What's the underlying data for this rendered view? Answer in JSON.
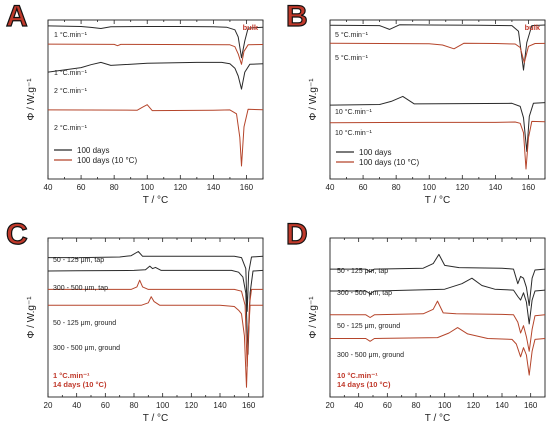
{
  "colors": {
    "black": "#2a2a2a",
    "red": "#b5452b",
    "accent": "#c0392b"
  },
  "chart_data": [
    {
      "panel": "A",
      "type": "line",
      "xlabel": "T  /  °C",
      "ylabel": "Φ  /  W.g⁻¹",
      "xlim": [
        40,
        170
      ],
      "xticks": [
        40,
        60,
        80,
        100,
        120,
        140,
        160
      ],
      "corner_label": "bulk",
      "curve_labels": [
        "1 °C.min⁻¹",
        "1 °C.min⁻¹",
        "2 °C.min⁻¹",
        "2 °C.min⁻¹"
      ],
      "legend": [
        {
          "name": "100 days",
          "color": "#2a2a2a"
        },
        {
          "name": "100 days (10 °C)",
          "color": "#b5452b"
        }
      ],
      "series": [
        {
          "color": "#2a2a2a",
          "points": [
            [
              40,
              27.5
            ],
            [
              60,
              27.0
            ],
            [
              66,
              26.3
            ],
            [
              72,
              25.5
            ],
            [
              78,
              26.8
            ],
            [
              100,
              27.0
            ],
            [
              120,
              27.0
            ],
            [
              140,
              26.8
            ],
            [
              148,
              26.5
            ],
            [
              153,
              24.5
            ],
            [
              155,
              19.0
            ],
            [
              157,
              3.0
            ],
            [
              159,
              16.0
            ],
            [
              161,
              25.8
            ],
            [
              170,
              26.5
            ]
          ]
        },
        {
          "color": "#b5452b",
          "points": [
            [
              40,
              13.5
            ],
            [
              80,
              13.3
            ],
            [
              82,
              12.3
            ],
            [
              84,
              13.3
            ],
            [
              110,
              13.2
            ],
            [
              150,
              13.0
            ],
            [
              153,
              11.5
            ],
            [
              155,
              6.0
            ],
            [
              157,
              -2.0
            ],
            [
              158.5,
              8.0
            ],
            [
              161,
              13.0
            ],
            [
              170,
              13.2
            ]
          ]
        },
        {
          "color": "#2a2a2a",
          "points": [
            [
              40,
              -8.0
            ],
            [
              60,
              -4.5
            ],
            [
              66,
              -2.3
            ],
            [
              72,
              -0.5
            ],
            [
              78,
              -2.8
            ],
            [
              100,
              -1.2
            ],
            [
              130,
              -0.5
            ],
            [
              145,
              -0.5
            ],
            [
              150,
              -1.5
            ],
            [
              153,
              -5.0
            ],
            [
              155,
              -11.0
            ],
            [
              157,
              -21.0
            ],
            [
              159,
              -8.0
            ],
            [
              162,
              -2.0
            ],
            [
              170,
              -1.5
            ]
          ]
        },
        {
          "color": "#b5452b",
          "points": [
            [
              40,
              -37.0
            ],
            [
              94,
              -37.2
            ],
            [
              97,
              -35.0
            ],
            [
              100,
              -33.0
            ],
            [
              103,
              -37.5
            ],
            [
              140,
              -37.2
            ],
            [
              150,
              -37.0
            ],
            [
              154,
              -40.0
            ],
            [
              156,
              -58.0
            ],
            [
              157,
              -80.0
            ],
            [
              158.5,
              -50.0
            ],
            [
              161,
              -36.5
            ],
            [
              170,
              -36.8
            ]
          ]
        }
      ]
    },
    {
      "panel": "B",
      "type": "line",
      "xlabel": "T  /  °C",
      "ylabel": "Φ  /  W.g⁻¹",
      "xlim": [
        40,
        170
      ],
      "xticks": [
        40,
        60,
        80,
        100,
        120,
        140,
        160
      ],
      "corner_label": "bulk",
      "curve_labels": [
        "5 °C.min⁻¹",
        "5 °C.min⁻¹",
        "10 °C.min⁻¹",
        "10 °C.min⁻¹"
      ],
      "legend": [
        {
          "name": "100 days",
          "color": "#2a2a2a"
        },
        {
          "name": "100 days (10 °C)",
          "color": "#b5452b"
        }
      ],
      "series": [
        {
          "color": "#2a2a2a",
          "points": [
            [
              40,
              27.8
            ],
            [
              70,
              27.5
            ],
            [
              76,
              24.5
            ],
            [
              82,
              28.2
            ],
            [
              100,
              28.0
            ],
            [
              130,
              27.8
            ],
            [
              150,
              27.5
            ],
            [
              154,
              23.0
            ],
            [
              157,
              -8.0
            ],
            [
              159,
              14.0
            ],
            [
              162,
              27.5
            ],
            [
              170,
              28.0
            ]
          ]
        },
        {
          "color": "#b5452b",
          "points": [
            [
              40,
              13.5
            ],
            [
              100,
              13.0
            ],
            [
              108,
              12.0
            ],
            [
              115,
              9.0
            ],
            [
              121,
              13.5
            ],
            [
              140,
              13.2
            ],
            [
              152,
              12.8
            ],
            [
              155,
              10.0
            ],
            [
              157.5,
              -2.0
            ],
            [
              160,
              11.0
            ],
            [
              164,
              13.2
            ],
            [
              170,
              13.3
            ]
          ]
        },
        {
          "color": "#2a2a2a",
          "points": [
            [
              40,
              -36.0
            ],
            [
              70,
              -35.5
            ],
            [
              77,
              -33.0
            ],
            [
              84,
              -29.0
            ],
            [
              91,
              -35.0
            ],
            [
              120,
              -34.8
            ],
            [
              150,
              -34.5
            ],
            [
              155,
              -37.0
            ],
            [
              157,
              -46.0
            ],
            [
              159,
              -73.0
            ],
            [
              160.5,
              -45.0
            ],
            [
              163,
              -34.5
            ],
            [
              170,
              -34.0
            ]
          ]
        },
        {
          "color": "#b5452b",
          "points": [
            [
              40,
              -50.0
            ],
            [
              100,
              -49.8
            ],
            [
              140,
              -49.8
            ],
            [
              152,
              -49.5
            ],
            [
              155,
              -50.5
            ],
            [
              157,
              -58.0
            ],
            [
              158.5,
              -87.0
            ],
            [
              160,
              -62.0
            ],
            [
              162,
              -49.0
            ],
            [
              170,
              -49.2
            ]
          ]
        }
      ]
    },
    {
      "panel": "C",
      "type": "line",
      "xlabel": "T  /  °C",
      "ylabel": "Φ  /  W.g⁻¹",
      "xlim": [
        20,
        170
      ],
      "xticks": [
        20,
        40,
        60,
        80,
        100,
        120,
        140,
        160
      ],
      "curve_labels": [
        "50 - 125 μm, tap",
        "300 - 500 μm, tap",
        "50 - 125 μm, ground",
        "300 - 500 μm, ground"
      ],
      "corner_annotation": [
        "1 °C.min⁻¹",
        "14 days (10 °C)"
      ],
      "series": [
        {
          "color": "#2a2a2a",
          "points": [
            [
              20,
              24.0
            ],
            [
              38,
              24.0
            ],
            [
              40,
              23.3
            ],
            [
              42,
              24.0
            ],
            [
              70,
              24.5
            ],
            [
              78,
              25.5
            ],
            [
              83,
              29.0
            ],
            [
              86,
              25.0
            ],
            [
              100,
              25.0
            ],
            [
              130,
              25.0
            ],
            [
              150,
              25.0
            ],
            [
              155,
              24.0
            ],
            [
              158,
              15.0
            ],
            [
              159,
              -20.0
            ],
            [
              160,
              12.0
            ],
            [
              162,
              24.5
            ],
            [
              170,
              25.0
            ]
          ]
        },
        {
          "color": "#2a2a2a",
          "points": [
            [
              20,
              13.0
            ],
            [
              40,
              13.2
            ],
            [
              80,
              13.5
            ],
            [
              88,
              14.0
            ],
            [
              91,
              17.0
            ],
            [
              93,
              15.0
            ],
            [
              95,
              16.0
            ],
            [
              99,
              13.5
            ],
            [
              120,
              13.5
            ],
            [
              148,
              13.5
            ],
            [
              153,
              12.0
            ],
            [
              156,
              8.0
            ],
            [
              158,
              -5.0
            ],
            [
              159.5,
              -55.0
            ],
            [
              161,
              -5.0
            ],
            [
              163,
              13.0
            ],
            [
              170,
              13.5
            ]
          ]
        },
        {
          "color": "#b5452b",
          "points": [
            [
              20,
              -2.0
            ],
            [
              78,
              -2.0
            ],
            [
              82,
              0.0
            ],
            [
              84,
              5.5
            ],
            [
              86,
              0.0
            ],
            [
              90,
              -2.0
            ],
            [
              150,
              -2.0
            ],
            [
              155,
              -3.5
            ],
            [
              157.5,
              -15.0
            ],
            [
              159,
              -65.0
            ],
            [
              160.5,
              -15.0
            ],
            [
              162,
              -2.0
            ],
            [
              170,
              -2.0
            ]
          ]
        },
        {
          "color": "#b5452b",
          "points": [
            [
              20,
              -15.0
            ],
            [
              85,
              -15.0
            ],
            [
              90,
              -13.0
            ],
            [
              92,
              -8.0
            ],
            [
              94,
              -12.0
            ],
            [
              98,
              -15.0
            ],
            [
              140,
              -15.0
            ],
            [
              150,
              -16.0
            ],
            [
              153,
              -19.0
            ],
            [
              155,
              -22.0
            ],
            [
              157,
              -40.0
            ],
            [
              158.5,
              -82.0
            ],
            [
              159.5,
              -45.0
            ],
            [
              161,
              -15.0
            ],
            [
              170,
              -15.0
            ]
          ]
        }
      ]
    },
    {
      "panel": "D",
      "type": "line",
      "xlabel": "T  /  °C",
      "ylabel": "Φ  /  W.g⁻¹",
      "xlim": [
        20,
        170
      ],
      "xticks": [
        20,
        40,
        60,
        80,
        100,
        120,
        140,
        160
      ],
      "curve_labels": [
        "50 - 125 μm, tap",
        "300 - 500 μm, tap",
        "50 - 125 μm, ground",
        "300 - 500 μm, ground"
      ],
      "corner_annotation": [
        "10 °C.min⁻¹",
        "14 days (10 °C)"
      ],
      "series": [
        {
          "color": "#2a2a2a",
          "points": [
            [
              20,
              25.0
            ],
            [
              45,
              25.0
            ],
            [
              48,
              23.5
            ],
            [
              51,
              25.0
            ],
            [
              85,
              25.5
            ],
            [
              92,
              28.0
            ],
            [
              96,
              33.0
            ],
            [
              100,
              27.0
            ],
            [
              110,
              25.8
            ],
            [
              140,
              25.5
            ],
            [
              148,
              25.0
            ],
            [
              151,
              17.0
            ],
            [
              153,
              21.0
            ],
            [
              155,
              20.0
            ],
            [
              157,
              15.0
            ],
            [
              159,
              5.0
            ],
            [
              161,
              20.0
            ],
            [
              163,
              24.5
            ],
            [
              170,
              25.0
            ]
          ]
        },
        {
          "color": "#2a2a2a",
          "points": [
            [
              20,
              13.0
            ],
            [
              45,
              13.0
            ],
            [
              48,
              11.5
            ],
            [
              51,
              13.0
            ],
            [
              100,
              14.0
            ],
            [
              112,
              17.0
            ],
            [
              119,
              20.0
            ],
            [
              126,
              16.0
            ],
            [
              135,
              14.0
            ],
            [
              148,
              13.5
            ],
            [
              151,
              10.0
            ],
            [
              153,
              8.0
            ],
            [
              155,
              12.0
            ],
            [
              157,
              7.0
            ],
            [
              159,
              -5.0
            ],
            [
              161,
              8.0
            ],
            [
              163,
              13.0
            ],
            [
              170,
              13.5
            ]
          ]
        },
        {
          "color": "#b5452b",
          "points": [
            [
              20,
              0.0
            ],
            [
              45,
              0.0
            ],
            [
              48,
              -1.5
            ],
            [
              51,
              0.0
            ],
            [
              85,
              0.5
            ],
            [
              92,
              3.0
            ],
            [
              95,
              7.5
            ],
            [
              99,
              1.0
            ],
            [
              108,
              0.5
            ],
            [
              140,
              0.2
            ],
            [
              148,
              0.0
            ],
            [
              151,
              -4.0
            ],
            [
              153,
              -10.0
            ],
            [
              155,
              -6.0
            ],
            [
              157,
              -12.0
            ],
            [
              159,
              -20.0
            ],
            [
              161,
              -8.0
            ],
            [
              163,
              -0.5
            ],
            [
              170,
              0.0
            ]
          ]
        },
        {
          "color": "#b5452b",
          "points": [
            [
              20,
              -13.0
            ],
            [
              45,
              -13.0
            ],
            [
              48,
              -14.5
            ],
            [
              51,
              -13.0
            ],
            [
              95,
              -12.5
            ],
            [
              103,
              -10.0
            ],
            [
              109,
              -7.0
            ],
            [
              116,
              -10.5
            ],
            [
              130,
              -13.0
            ],
            [
              147,
              -13.5
            ],
            [
              150,
              -16.0
            ],
            [
              153,
              -23.0
            ],
            [
              155,
              -18.0
            ],
            [
              157,
              -22.0
            ],
            [
              159,
              -33.0
            ],
            [
              161,
              -20.0
            ],
            [
              163,
              -13.5
            ],
            [
              170,
              -13.0
            ]
          ]
        }
      ]
    }
  ]
}
